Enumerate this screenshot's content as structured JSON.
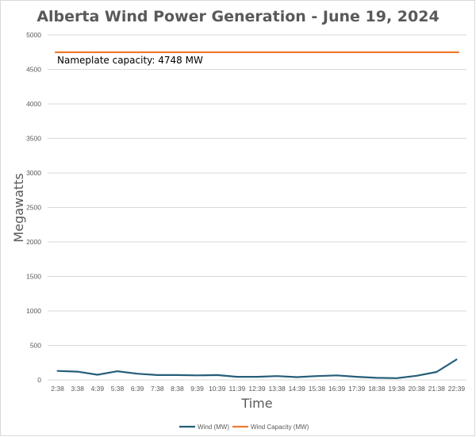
{
  "chart_data": {
    "type": "line",
    "title": "Alberta Wind Power Generation - June 19, 2024",
    "xlabel": "Time",
    "ylabel": "Megawatts",
    "ylim": [
      0,
      5000
    ],
    "yticks": [
      0,
      500,
      1000,
      1500,
      2000,
      2500,
      3000,
      3500,
      4000,
      4500,
      5000
    ],
    "grid": true,
    "legend_position": "bottom",
    "categories": [
      "2:38",
      "3:38",
      "4:39",
      "5:38",
      "6:39",
      "7:38",
      "8:38",
      "9:39",
      "10:39",
      "11:39",
      "12:39",
      "13:38",
      "14:39",
      "15:38",
      "16:39",
      "17:39",
      "18:38",
      "19:38",
      "20:38",
      "21:38",
      "22:39"
    ],
    "series": [
      {
        "name": "Wind (MW)",
        "color": "#255e79",
        "values": [
          130,
          120,
          75,
          125,
          90,
          70,
          70,
          65,
          70,
          45,
          45,
          55,
          40,
          55,
          65,
          45,
          30,
          25,
          60,
          115,
          295
        ]
      },
      {
        "name": "Wind Capacity (MW)",
        "color": "#ed7d31",
        "values": [
          4748,
          4748,
          4748,
          4748,
          4748,
          4748,
          4748,
          4748,
          4748,
          4748,
          4748,
          4748,
          4748,
          4748,
          4748,
          4748,
          4748,
          4748,
          4748,
          4748,
          4748
        ]
      }
    ],
    "annotation": "Nameplate capacity: 4748 MW"
  }
}
